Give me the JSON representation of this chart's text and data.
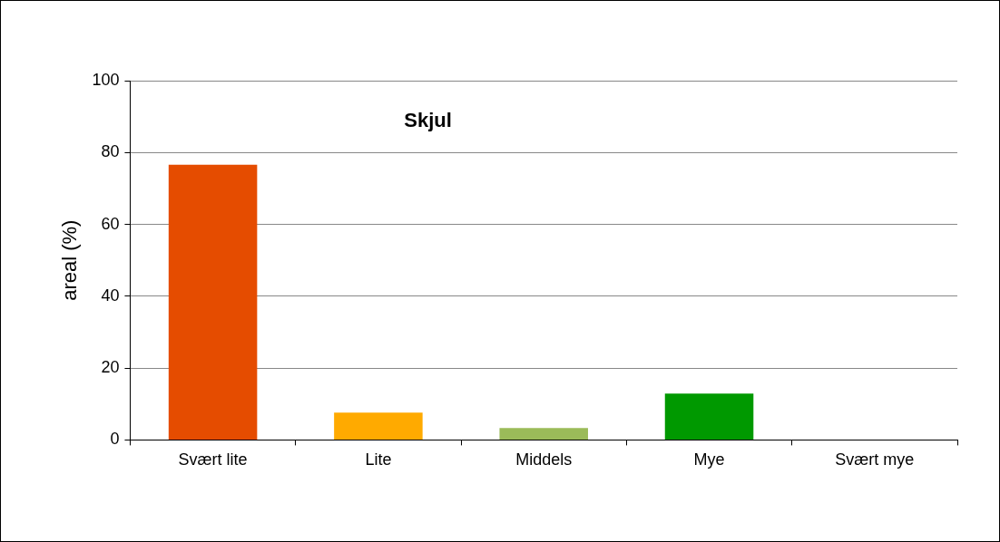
{
  "chart_data": {
    "type": "bar",
    "title": "Skjul",
    "ylabel": "areal (%)",
    "categories": [
      "Svært lite",
      "Lite",
      "Middels",
      "Mye",
      "Svært mye"
    ],
    "values": [
      76.6,
      7.6,
      3.3,
      12.9,
      0
    ],
    "colors": [
      "#e54c00",
      "#ffaa00",
      "#9bbb59",
      "#009900",
      "#4f81bd"
    ],
    "ylim": [
      0,
      100
    ],
    "yticks": [
      0,
      20,
      40,
      60,
      80,
      100
    ],
    "grid": "y",
    "legend": false
  }
}
